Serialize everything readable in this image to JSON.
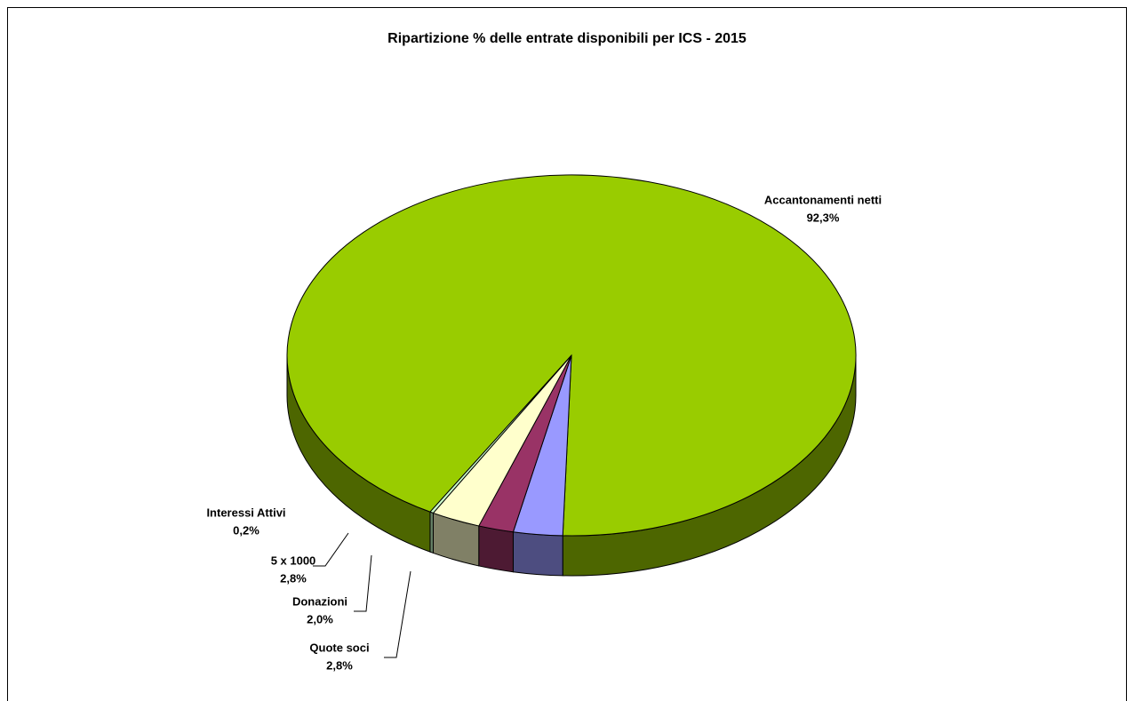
{
  "chart_data": {
    "type": "pie",
    "title": "Ripartizione % delle entrate disponibili per ICS - 2015",
    "categories": [
      "Accantonamenti netti",
      "Quote soci",
      "Donazioni",
      "5 x 1000",
      "Interessi Attivi"
    ],
    "values": [
      92.3,
      2.8,
      2.0,
      2.8,
      0.2
    ],
    "value_labels": [
      "92,3%",
      "2,8%",
      "2,0%",
      "2,8%",
      "0,2%"
    ],
    "colors": [
      "#99cc00",
      "#9999ff",
      "#993366",
      "#ffffcc",
      "#ccffcc"
    ]
  }
}
